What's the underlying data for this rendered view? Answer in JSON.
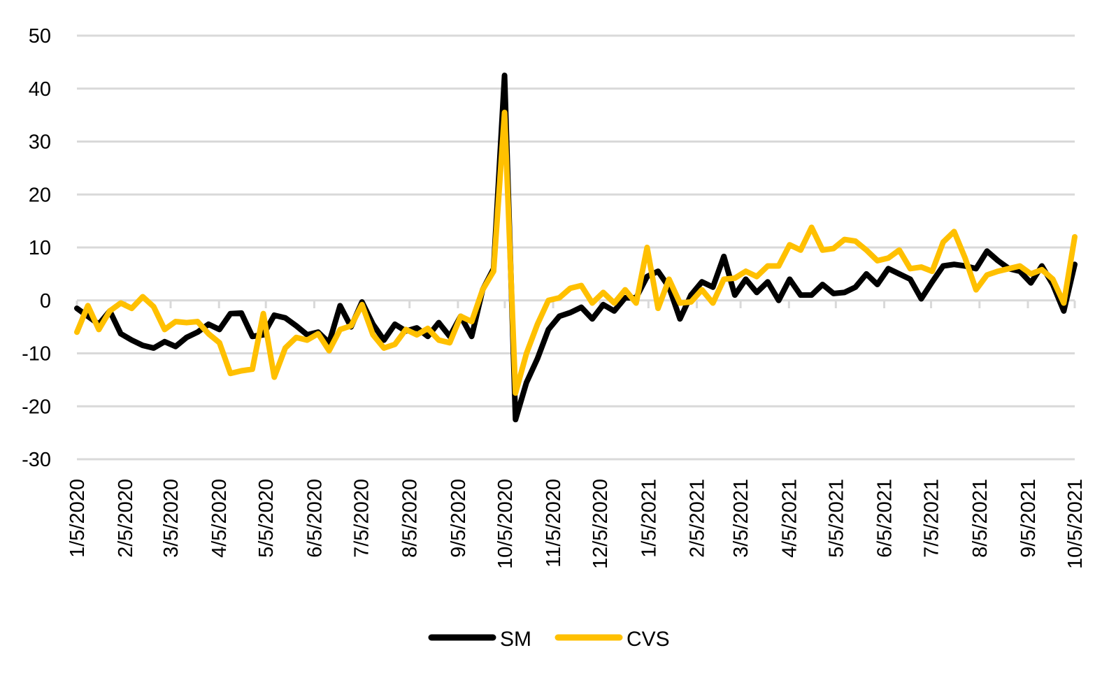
{
  "chart_data": {
    "type": "line",
    "title": "",
    "xlabel": "",
    "ylabel": "",
    "ylim": [
      -30,
      50
    ],
    "yticks": [
      50,
      40,
      30,
      20,
      10,
      0,
      -10,
      -20,
      -30
    ],
    "grid": true,
    "legend_position": "bottom-center",
    "x_start": "1/5/2020",
    "x_interval": "weekly",
    "x_ticks": [
      "1/5/2020",
      "2/5/2020",
      "3/5/2020",
      "4/5/2020",
      "5/5/2020",
      "6/5/2020",
      "7/5/2020",
      "8/5/2020",
      "9/5/2020",
      "10/5/2020",
      "11/5/2020",
      "12/5/2020",
      "1/5/2021",
      "2/5/2021",
      "3/5/2021",
      "4/5/2021",
      "5/5/2021",
      "6/5/2021",
      "7/5/2021",
      "8/5/2021",
      "9/5/2021",
      "10/5/2021"
    ],
    "series": [
      {
        "name": "SM",
        "color": "#000000",
        "values": [
          -1.5,
          -3,
          -4.5,
          -2,
          -6.3,
          -7.5,
          -8.5,
          -9,
          -7.8,
          -8.7,
          -7,
          -6,
          -4.5,
          -5.5,
          -2.5,
          -2.4,
          -6.8,
          -6.5,
          -2.8,
          -3.3,
          -4.8,
          -6.5,
          -6,
          -8,
          -1,
          -5,
          -0.3,
          -4.5,
          -7.5,
          -4.5,
          -5.8,
          -5.2,
          -6.8,
          -4.2,
          -6.8,
          -3,
          -6.8,
          2,
          6,
          42.5,
          -22.5,
          -15.5,
          -11,
          -5.5,
          -3,
          -2.3,
          -1.3,
          -3.5,
          -0.8,
          -2,
          0.5,
          0.5,
          4.5,
          5.5,
          2.5,
          -3.5,
          1,
          3.5,
          2.5,
          8.3,
          1,
          4,
          1.5,
          3.5,
          0,
          4,
          1,
          1,
          3,
          1.3,
          1.5,
          2.5,
          5,
          3,
          6,
          5,
          4,
          0.3,
          3.5,
          6.5,
          6.8,
          6.5,
          6,
          9.3,
          7.5,
          6,
          5.5,
          3.3,
          6.5,
          3,
          -2,
          6.8
        ]
      },
      {
        "name": "CVS",
        "color": "#FFC000",
        "values": [
          -6,
          -1,
          -5.5,
          -2,
          -0.5,
          -1.5,
          0.7,
          -1.2,
          -5.5,
          -4,
          -4.2,
          -4,
          -6.3,
          -8,
          -13.8,
          -13.3,
          -13,
          -2.5,
          -14.5,
          -9,
          -7,
          -7.5,
          -6.3,
          -9.5,
          -5.5,
          -4.8,
          -0.8,
          -6.5,
          -9,
          -8.3,
          -5.5,
          -6.5,
          -5.3,
          -7.5,
          -8,
          -3,
          -4,
          2,
          5.5,
          35.5,
          -17.5,
          -10,
          -4.5,
          0,
          0.5,
          2.3,
          2.8,
          -0.5,
          1.5,
          -0.5,
          2,
          -0.5,
          10,
          -1.5,
          4,
          -0.5,
          -0.3,
          2,
          -0.5,
          4,
          4.2,
          5.5,
          4.5,
          6.5,
          6.5,
          10.5,
          9.5,
          13.8,
          9.5,
          9.8,
          11.5,
          11.2,
          9.5,
          7.5,
          8,
          9.5,
          6,
          6.3,
          5.5,
          11,
          13,
          8,
          2,
          4.8,
          5.5,
          6,
          6.5,
          5,
          5.8,
          4,
          -0.5,
          12
        ]
      }
    ]
  }
}
